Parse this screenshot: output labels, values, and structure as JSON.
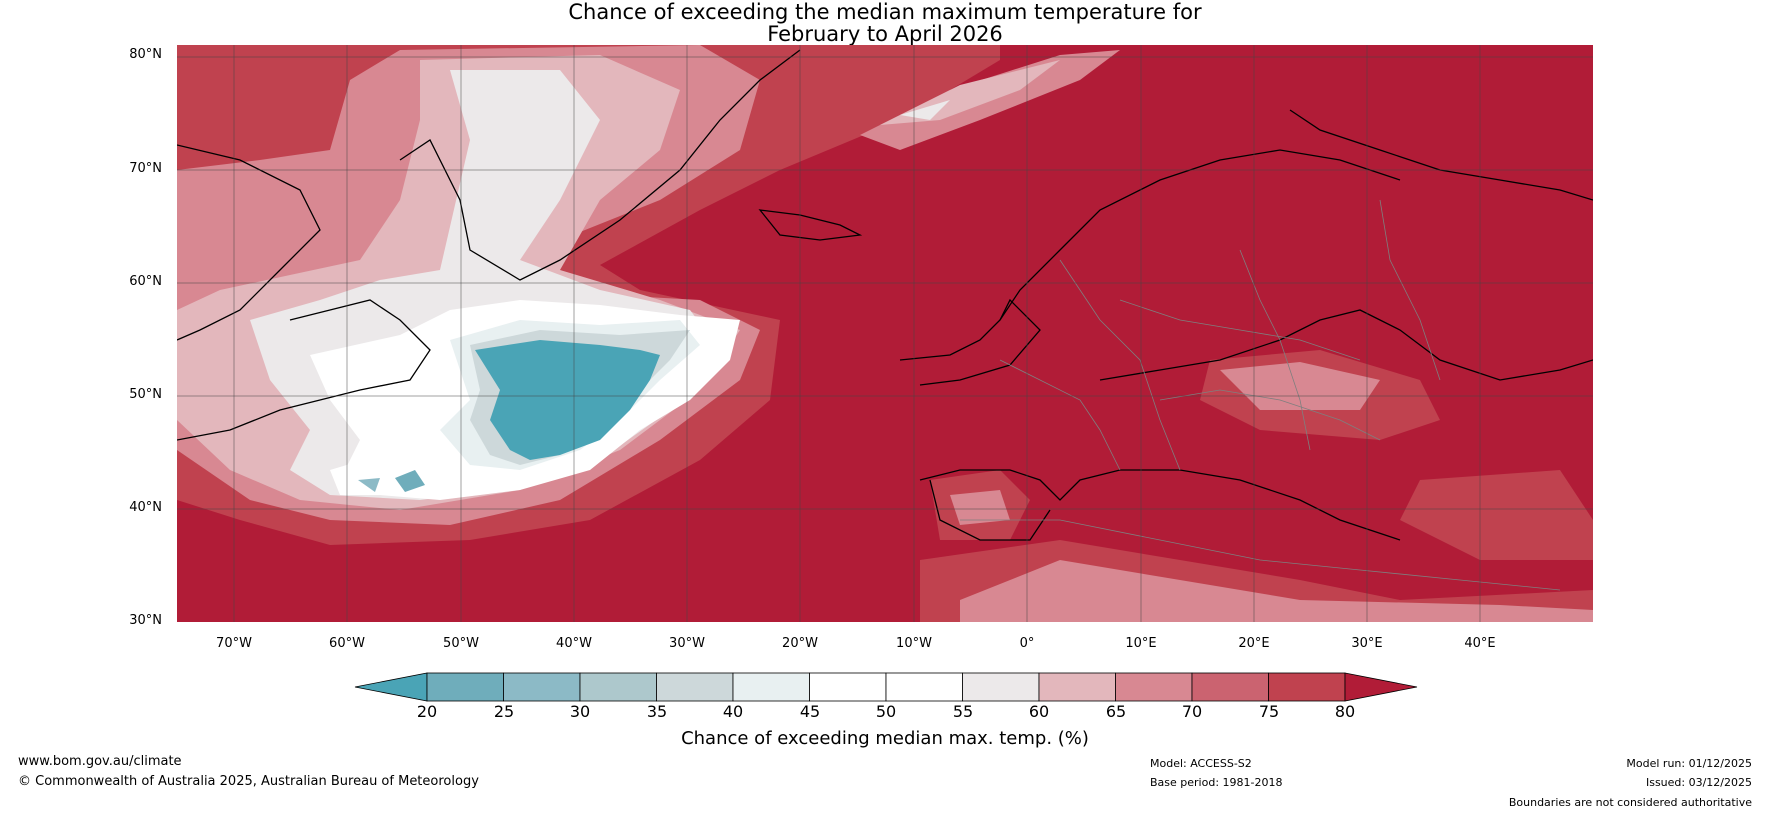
{
  "title": {
    "line1": "Chance of exceeding the median maximum temperature for",
    "line2": "February to April 2026"
  },
  "lat_labels": [
    "80°N",
    "70°N",
    "60°N",
    "50°N",
    "40°N",
    "30°N"
  ],
  "lon_labels": [
    "70°W",
    "60°W",
    "50°W",
    "40°W",
    "30°W",
    "20°W",
    "10°W",
    "0°",
    "10°E",
    "20°E",
    "30°E",
    "40°E"
  ],
  "colorbar": {
    "ticks": [
      "20",
      "25",
      "30",
      "35",
      "40",
      "45",
      "50",
      "55",
      "60",
      "65",
      "70",
      "75",
      "80"
    ],
    "colors": [
      "#4aa4b6",
      "#6fadbb",
      "#8cbac6",
      "#adc8cc",
      "#cdd8da",
      "#e8f0f1",
      "#ffffff",
      "#ffffff",
      "#ece9ea",
      "#e3b7bc",
      "#d88892",
      "#cb6370",
      "#c0424f",
      "#b11c37"
    ],
    "label": "Chance of exceeding median max. temp. (%)"
  },
  "palette": {
    "background": "#b11c37",
    "land_warm": "#b11c37",
    "coast": "#000000",
    "borders": "#7f7f7f"
  },
  "footer": {
    "url": "www.bom.gov.au/climate",
    "copyright": "© Commonwealth of Australia 2025, Australian Bureau of Meteorology",
    "model": "Model: ACCESS-S2",
    "base_period": "Base period: 1981-2018",
    "model_run": "Model run: 01/12/2025",
    "issued": "Issued: 03/12/2025",
    "disclaimer": "Boundaries are not considered authoritative"
  }
}
